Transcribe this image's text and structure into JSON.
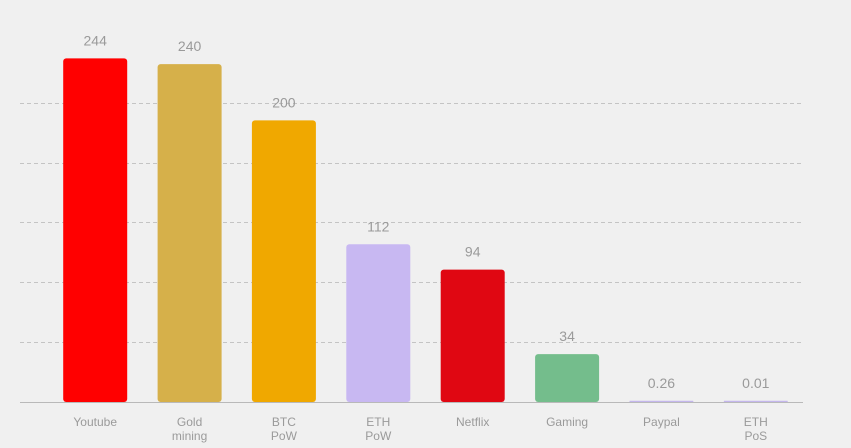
{
  "chart_data": {
    "type": "bar",
    "categories": [
      "Youtube",
      "Gold mining",
      "BTC PoW",
      "ETH PoW",
      "Netflix",
      "Gaming",
      "Paypal",
      "ETH PoS"
    ],
    "category_lines": [
      [
        "Youtube"
      ],
      [
        "Gold",
        "mining"
      ],
      [
        "BTC",
        "PoW"
      ],
      [
        "ETH",
        "PoW"
      ],
      [
        "Netflix"
      ],
      [
        "Gaming"
      ],
      [
        "Paypal"
      ],
      [
        "ETH",
        "PoS"
      ]
    ],
    "values": [
      244,
      240,
      200,
      112,
      94,
      34,
      0.26,
      0.01
    ],
    "value_labels": [
      "244",
      "240",
      "200",
      "112",
      "94",
      "34",
      "0.26",
      "0.01"
    ],
    "colors": [
      "#ff0000",
      "#d6b04a",
      "#f0a800",
      "#c8b8f2",
      "#e00712",
      "#74bd8c",
      "#c4b6ec",
      "#c4b6ec"
    ],
    "ylim": [
      0,
      260
    ],
    "gridlines": [
      0,
      42.5,
      85,
      127.5,
      170,
      212.5
    ],
    "grid": true,
    "legend": "none",
    "title": "",
    "xlabel": "",
    "ylabel": ""
  }
}
